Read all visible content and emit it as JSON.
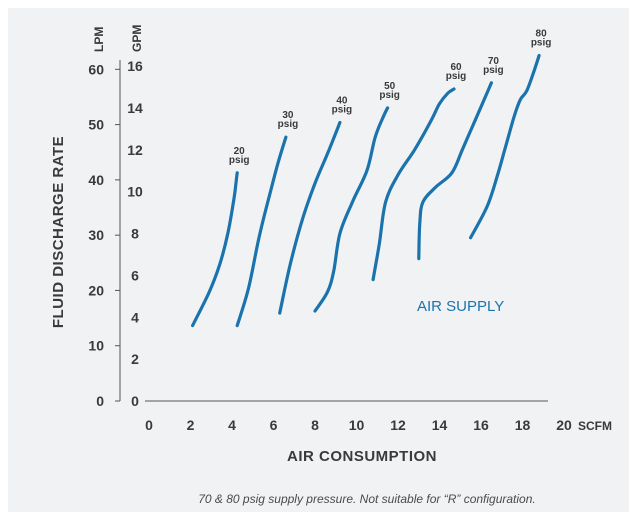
{
  "chart_data": {
    "type": "line",
    "xlabel": "AIR CONSUMPTION",
    "x_unit": "SCFM",
    "xlim": [
      0,
      20
    ],
    "x_ticks": [
      "0",
      "2",
      "4",
      "6",
      "8",
      "10",
      "12",
      "14",
      "16",
      "18",
      "20"
    ],
    "ylabel": "FLUID DISCHARGE RATE",
    "y_gpm_unit": "GPM",
    "y_gpm_lim": [
      0,
      16
    ],
    "y_gpm_ticks": [
      "0",
      "2",
      "4",
      "6",
      "8",
      "10",
      "12",
      "14",
      "16"
    ],
    "y_lpm_unit": "LPM",
    "y_lpm_lim": [
      0,
      60.6
    ],
    "y_lpm_ticks": [
      "0",
      "10",
      "20",
      "30",
      "40",
      "50",
      "60"
    ],
    "annotation": "AIR SUPPLY",
    "note": "70 & 80 psig supply pressure. Not suitable for “R” configuration.",
    "grid": false,
    "series": [
      {
        "name": "20 psig",
        "label_lines": [
          "20",
          "psig"
        ],
        "x": [
          2.1,
          2.9,
          3.4,
          3.8,
          4.1,
          4.2,
          4.25
        ],
        "y": [
          3.6,
          5.2,
          6.5,
          8.0,
          9.7,
          10.5,
          10.9
        ]
      },
      {
        "name": "30 psig",
        "label_lines": [
          "30",
          "psig"
        ],
        "x": [
          4.25,
          4.8,
          5.3,
          5.8,
          6.2,
          6.5,
          6.6
        ],
        "y": [
          3.6,
          5.4,
          7.8,
          9.8,
          11.3,
          12.3,
          12.6
        ]
      },
      {
        "name": "40 psig",
        "label_lines": [
          "40",
          "psig"
        ],
        "x": [
          6.3,
          6.8,
          7.4,
          8.0,
          8.6,
          9.0,
          9.2
        ],
        "y": [
          4.2,
          6.5,
          8.7,
          10.4,
          11.8,
          12.8,
          13.3
        ]
      },
      {
        "name": "50 psig",
        "label_lines": [
          "50",
          "psig"
        ],
        "x": [
          8.0,
          8.6,
          8.9,
          9.2,
          9.8,
          10.5,
          10.9,
          11.3,
          11.5
        ],
        "y": [
          4.3,
          5.2,
          6.2,
          8.0,
          9.5,
          11.0,
          12.6,
          13.6,
          14.0
        ]
      },
      {
        "name": "60 psig",
        "label_lines": [
          "60",
          "psig"
        ],
        "x": [
          10.8,
          11.1,
          11.4,
          12.0,
          12.8,
          13.6,
          14.0,
          14.4,
          14.7
        ],
        "y": [
          5.8,
          7.5,
          9.5,
          10.8,
          12.0,
          13.4,
          14.2,
          14.7,
          14.9
        ]
      },
      {
        "name": "70 psig",
        "label_lines": [
          "70",
          "psig"
        ],
        "x": [
          13.0,
          13.05,
          13.2,
          13.8,
          14.6,
          15.1,
          15.8,
          16.2,
          16.5
        ],
        "y": [
          6.8,
          8.5,
          9.5,
          10.2,
          10.9,
          12.0,
          13.6,
          14.5,
          15.2
        ]
      },
      {
        "name": "80 psig",
        "label_lines": [
          "80",
          "psig"
        ],
        "x": [
          15.5,
          16.3,
          16.8,
          17.2,
          17.6,
          17.9,
          18.2,
          18.5,
          18.8
        ],
        "y": [
          7.8,
          9.3,
          10.8,
          12.2,
          13.6,
          14.4,
          14.8,
          15.6,
          16.5
        ]
      }
    ]
  }
}
